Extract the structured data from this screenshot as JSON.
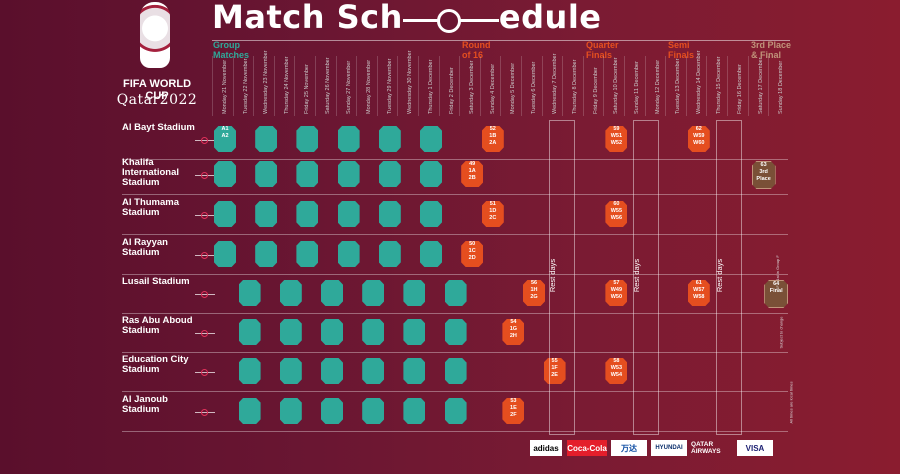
{
  "header": {
    "title_left": "Match Sch",
    "title_right": "edule"
  },
  "logo": {
    "text": "FIFA WORLD CUP",
    "sub": "Qatar2022"
  },
  "phases": [
    {
      "label1": "Group",
      "label2": "Matches",
      "color": "#2fa99a"
    },
    {
      "label1": "Round",
      "label2": "of 16",
      "color": "#e54e1f"
    },
    {
      "label1": "Quarter",
      "label2": "Finals",
      "color": "#e54e1f"
    },
    {
      "label1": "Semi",
      "label2": "Finals",
      "color": "#e54e1f"
    },
    {
      "label1": "3rd Place",
      "label2": "& Final",
      "color": "#c0937a"
    }
  ],
  "days": [
    "Monday 21 November",
    "Tuesday 22 November",
    "Wednesday 23 November",
    "Thursday 24 November",
    "Friday 25 November",
    "Saturday 26 November",
    "Sunday 27 November",
    "Monday 28 November",
    "Tuesday 29 November",
    "Wednesday 30 November",
    "Thursday 1 December",
    "Friday 2 December",
    "Saturday 3 December",
    "Sunday 4 December",
    "Monday 5 December",
    "Tuesday 6 December",
    "Wednesday 7 December",
    "Thursday 8 December",
    "Friday 9 December",
    "Saturday 10 December",
    "Sunday 11 December",
    "Monday 12 December",
    "Tuesday 13 December",
    "Wednesday 14 December",
    "Thursday 15 December",
    "Friday 16 December",
    "Saturday 17 December",
    "Sunday 18 December"
  ],
  "venues": [
    {
      "name": "Al Bayt Stadium"
    },
    {
      "name": "Khalifa International Stadium"
    },
    {
      "name": "Al Thumama Stadium"
    },
    {
      "name": "Al Rayyan Stadium"
    },
    {
      "name": "Lusail Stadium"
    },
    {
      "name": "Ras Abu Aboud Stadium"
    },
    {
      "name": "Education City Stadium"
    },
    {
      "name": "Al Janoub Stadium"
    }
  ],
  "ko_matches": [
    {
      "no": "49",
      "a": "1A",
      "b": "2B"
    },
    {
      "no": "50",
      "a": "1C",
      "b": "2D"
    },
    {
      "no": "51",
      "a": "1D",
      "b": "2C"
    },
    {
      "no": "52",
      "a": "1B",
      "b": "2A"
    },
    {
      "no": "53",
      "a": "1E",
      "b": "2F"
    },
    {
      "no": "54",
      "a": "1G",
      "b": "2H"
    },
    {
      "no": "55",
      "a": "1F",
      "b": "2E"
    },
    {
      "no": "56",
      "a": "1H",
      "b": "2G"
    },
    {
      "no": "57",
      "a": "W49",
      "b": "W50"
    },
    {
      "no": "58",
      "a": "W53",
      "b": "W54"
    },
    {
      "no": "59",
      "a": "W51",
      "b": "W52"
    },
    {
      "no": "60",
      "a": "W55",
      "b": "W56"
    },
    {
      "no": "61",
      "a": "W57",
      "b": "W58"
    },
    {
      "no": "62",
      "a": "W59",
      "b": "W60"
    },
    {
      "no": "63",
      "a": "3rd",
      "b": "Place"
    },
    {
      "no": "64",
      "a": "Final",
      "b": ""
    }
  ],
  "opener": {
    "a": "A1",
    "b": "A2"
  },
  "rest_label": "Rest days",
  "sponsors": [
    "adidas",
    "Coca-Cola",
    "万达",
    "HYUNDAI",
    "QATAR AIRWAYS",
    "VISA"
  ],
  "footer_note": "All times are local times",
  "side_notes": [
    "1F = 1st in Group F",
    "Subject to change"
  ],
  "colors": {
    "group": "#2fa99a",
    "knockout": "#e54e1f",
    "final": "#7a5037"
  }
}
